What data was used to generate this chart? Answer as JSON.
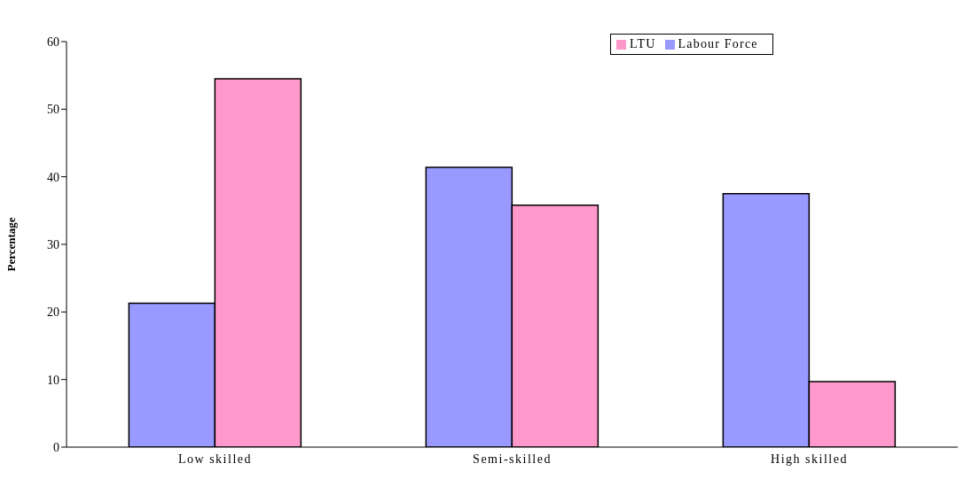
{
  "chart_data": {
    "type": "bar",
    "ylabel": "Percentage",
    "categories": [
      "Low skilled",
      "Semi-skilled",
      "High skilled"
    ],
    "series": [
      {
        "name": "Labour Force",
        "color": "#9999ff",
        "values": [
          21.3,
          41.4,
          37.5
        ]
      },
      {
        "name": "LTU",
        "color": "#ff99cc",
        "values": [
          54.5,
          35.8,
          9.7
        ]
      }
    ],
    "ylim": [
      0,
      60
    ],
    "yticks": [
      0,
      10,
      20,
      30,
      40,
      50,
      60
    ],
    "grid": false,
    "legend": "top right"
  }
}
